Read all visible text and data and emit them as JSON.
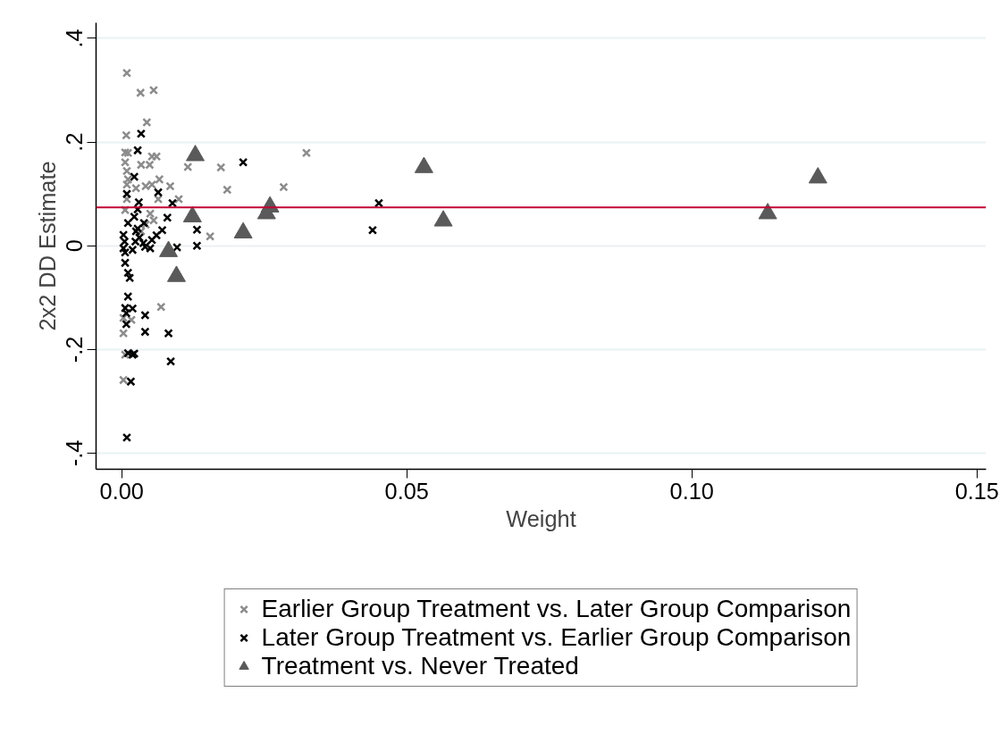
{
  "chart_data": {
    "type": "scatter",
    "xlabel": "Weight",
    "ylabel": "2x2 DD Estimate",
    "xlim": [
      -0.0045,
      0.1516
    ],
    "ylim": [
      -0.431,
      0.43
    ],
    "xticks": [
      {
        "value": 0,
        "label": "0.00"
      },
      {
        "value": 0.05,
        "label": "0.05"
      },
      {
        "value": 0.1,
        "label": "0.10"
      },
      {
        "value": 0.15,
        "label": "0.15"
      }
    ],
    "yticks": [
      {
        "value": -0.4,
        "label": "-.4"
      },
      {
        "value": -0.2,
        "label": "-.2"
      },
      0,
      {
        "value": 0.2,
        "label": ".2"
      },
      {
        "value": 0.4,
        "label": ".4"
      }
    ],
    "grid": "y",
    "legend": "bottom",
    "ref_lines": [
      {
        "axis": "y",
        "value": 0.074,
        "color": "#c10534"
      }
    ],
    "series": [
      {
        "name": "Earlier Group Treatment vs. Later Group Comparison",
        "color": "#8c8c8c",
        "marker": "cross",
        "x": [
          0.0009,
          0.0033,
          0.0056,
          0.0044,
          0.0008,
          0.0006,
          0.0011,
          0.0053,
          0.0061,
          0.0116,
          0.0174,
          0.0006,
          0.0009,
          0.0034,
          0.0049,
          0.0011,
          0.0009,
          0.0066,
          0.0085,
          0.0042,
          0.0053,
          0.0025,
          0.0064,
          0.01,
          0.0009,
          0.0006,
          0.005,
          0.0056,
          0.0042,
          0.0034,
          null,
          0.0155,
          null,
          0.0324,
          0.0284,
          0.0185,
          null,
          0.0069,
          0.0003,
          0.0017,
          0.0003,
          0.0006,
          0.0003
        ],
        "values": [
          0.333,
          0.295,
          0.3,
          0.238,
          0.213,
          0.18,
          0.179,
          0.172,
          0.172,
          0.152,
          0.151,
          0.161,
          0.144,
          0.156,
          0.156,
          0.128,
          0.118,
          0.128,
          0.115,
          0.115,
          0.118,
          0.111,
          0.09,
          0.09,
          0.09,
          0.069,
          0.062,
          0.049,
          0.041,
          0.028,
          null,
          0.018,
          null,
          0.179,
          0.113,
          0.108,
          null,
          -0.118,
          -0.139,
          -0.143,
          -0.169,
          -0.21,
          -0.259
        ]
      },
      {
        "name": "Later Group Treatment vs. Earlier Group Comparison",
        "color": "#000000",
        "marker": "cross",
        "x": [
          0.0034,
          0.0028,
          0.0022,
          0.0009,
          0.0064,
          0.003,
          0.0028,
          0.0022,
          0.0089,
          0.008,
          0.0071,
          0.0061,
          0.0039,
          null,
          0.0132,
          0.0132,
          0.0097,
          0.0011,
          0.0003,
          0.0005,
          0.0003,
          0.0006,
          0.0019,
          0.0024,
          0.0025,
          0.0028,
          0.0031,
          0.0038,
          0.0041,
          0.005,
          0.0053,
          0.0006,
          0.0011,
          0.0014,
          0.0011,
          0.0006,
          0.0008,
          0.0019,
          0.0008,
          0.0041,
          0.0041,
          0.0011,
          0.0019,
          0.0022,
          0.0016,
          0.0009,
          0.0082,
          0.0086,
          0.0451,
          0.044,
          0.0213
        ],
        "values": [
          0.216,
          0.184,
          0.133,
          0.1,
          0.103,
          0.084,
          0.07,
          0.056,
          0.082,
          0.054,
          0.03,
          0.02,
          0.044,
          null,
          0.031,
          0,
          -0.003,
          0.044,
          0.021,
          0.008,
          -0.005,
          -0.013,
          -0.008,
          0.008,
          0.028,
          0.033,
          0.016,
          0.005,
          -0.002,
          -0.005,
          0.011,
          -0.033,
          -0.052,
          -0.062,
          -0.098,
          -0.12,
          -0.13,
          -0.121,
          -0.151,
          -0.134,
          -0.166,
          -0.207,
          -0.21,
          -0.208,
          -0.262,
          -0.37,
          -0.169,
          -0.223,
          0.082,
          0.03,
          0.161
        ]
      },
      {
        "name": "Treatment vs. Never Treated",
        "color": "#5a5a5a",
        "marker": "triangle",
        "x": [
          0.0129,
          0.0124,
          0.026,
          0.0254,
          0.0213,
          0.0082,
          0.0096,
          0.053,
          0.0564,
          0.1133,
          0.1221
        ],
        "values": [
          0.174,
          0.056,
          0.075,
          0.062,
          0.025,
          -0.011,
          -0.059,
          0.151,
          0.048,
          0.062,
          0.131
        ]
      }
    ]
  }
}
